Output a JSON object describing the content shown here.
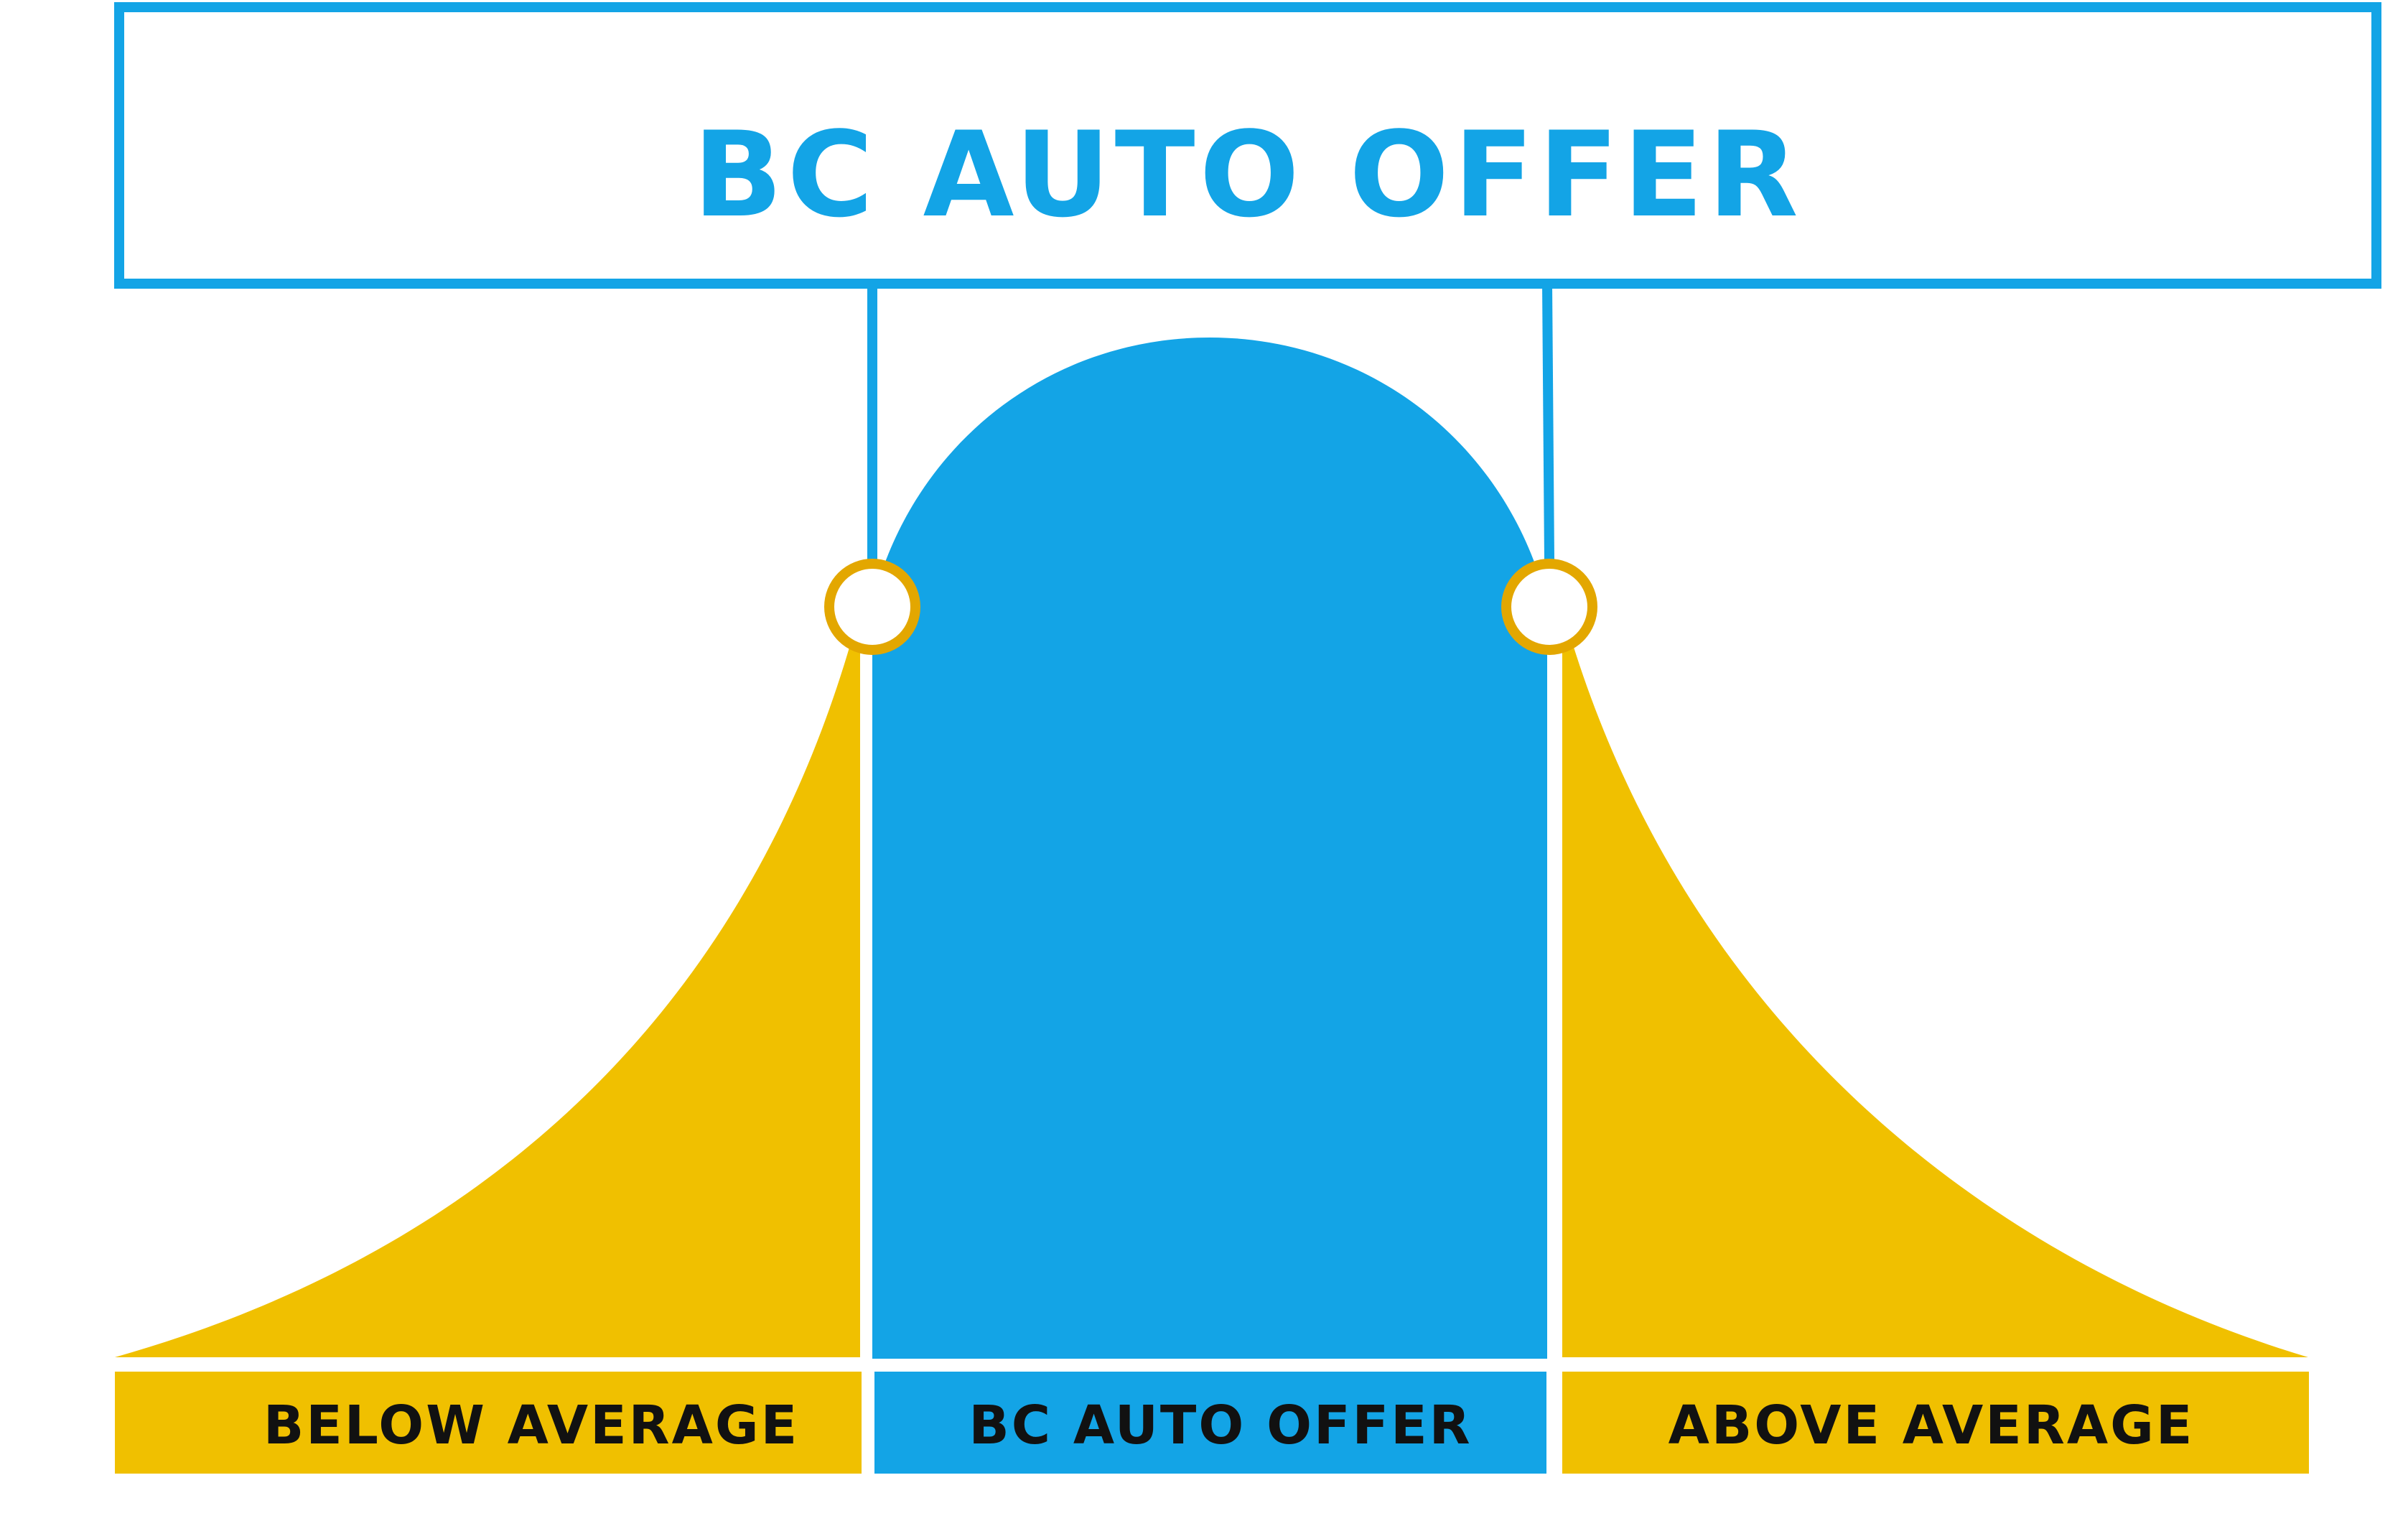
{
  "title": "BC AUTO OFFER",
  "segments": [
    {
      "id": "below",
      "label": "BELOW AVERAGE"
    },
    {
      "id": "middle",
      "label": "BC AUTO OFFER"
    },
    {
      "id": "above",
      "label": "ABOVE AVERAGE"
    }
  ],
  "colors": {
    "blue": "#13a4e6",
    "yellow": "#f0c000",
    "marker_ring": "#e3a700",
    "text_dark": "#111111",
    "background": "#ffffff"
  }
}
